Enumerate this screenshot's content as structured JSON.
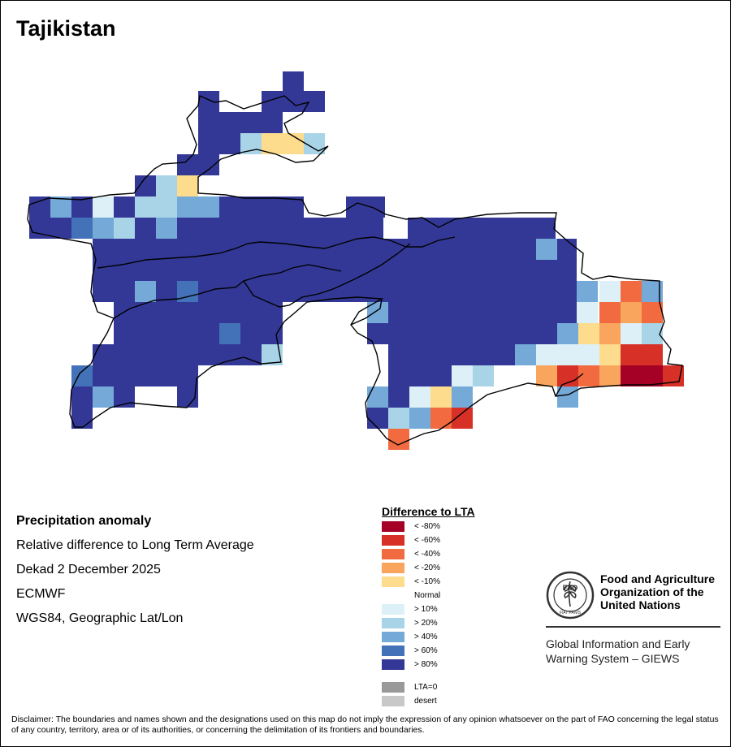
{
  "title": "Tajikistan",
  "map": {
    "subject": "Precipitation anomaly grid over Tajikistan",
    "grid_colors": {
      "dkblue": "#333896",
      "mdblue": "#4472b8",
      "ltblue": "#74a9d8",
      "paleblue": "#a9d4e8",
      "palest": "#ddf0f7",
      "ltorange": "#fddc8d",
      "orange": "#faa55e",
      "redorange": "#f26a3f",
      "red": "#d73027",
      "darkred": "#a50026"
    }
  },
  "info": {
    "heading": "Precipitation anomaly",
    "line1": "Relative difference to Long Term Average",
    "line2": "Dekad 2 December 2025",
    "line3": "ECMWF",
    "line4": "WGS84, Geographic Lat/Lon"
  },
  "legend": {
    "title": "Difference to LTA",
    "items": [
      {
        "label": "< -80%",
        "color": "#a50026"
      },
      {
        "label": "< -60%",
        "color": "#d73027"
      },
      {
        "label": "< -40%",
        "color": "#f26a3f"
      },
      {
        "label": "< -20%",
        "color": "#faa55e"
      },
      {
        "label": "< -10%",
        "color": "#fddc8d"
      },
      {
        "label": "Normal",
        "color": "#ffffff"
      },
      {
        "label": "> 10%",
        "color": "#ddf0f7"
      },
      {
        "label": "> 20%",
        "color": "#a9d4e8"
      },
      {
        "label": "> 40%",
        "color": "#74a9d8"
      },
      {
        "label": "> 60%",
        "color": "#4472b8"
      },
      {
        "label": "> 80%",
        "color": "#333896"
      }
    ],
    "extra": [
      {
        "label": "LTA=0",
        "color": "#999999"
      },
      {
        "label": "desert",
        "color": "#c8c8c8"
      }
    ]
  },
  "fao": {
    "logo_text": "FAO",
    "logo_motto": "FIAT PANIS",
    "name_line1": "Food and Agriculture",
    "name_line2": "Organization of the",
    "name_line3": "United Nations",
    "giews_line1": "Global Information and Early",
    "giews_line2": "Warning System – GIEWS"
  },
  "disclaimer": "Disclaimer: The boundaries and names shown and the designations used on this map do not imply the expression of any opinion whatsoever on the part of FAO concerning the legal status of any country, territory, area or of its authorities, or concerning the delimitation of its frontiers and boundaries."
}
